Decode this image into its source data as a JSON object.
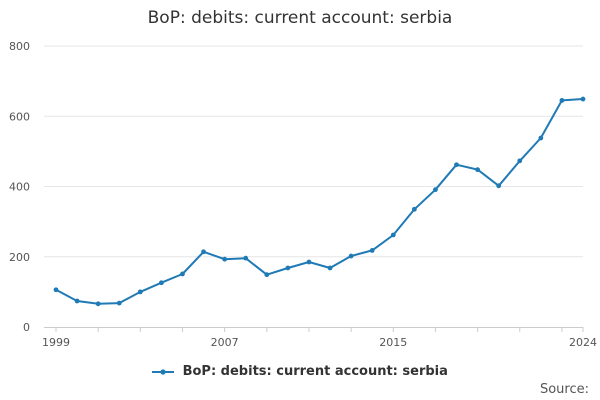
{
  "title": "BoP: debits: current account: serbia",
  "source_label": "Source:",
  "colors": {
    "series": "#1f7ab5",
    "grid": "#e6e6e6",
    "axis_text": "#555555",
    "axis_line": "#cccccc"
  },
  "chart_data": {
    "type": "line",
    "title": "BoP: debits: current account: serbia",
    "xlabel": "",
    "ylabel": "",
    "xlim": [
      1999,
      2024
    ],
    "ylim": [
      0,
      800
    ],
    "x_ticks": [
      1999,
      2007,
      2015,
      2024
    ],
    "y_ticks": [
      0,
      200,
      400,
      600,
      800
    ],
    "grid": true,
    "legend_position": "bottom",
    "series": [
      {
        "name": "BoP: debits: current account: serbia",
        "x": [
          1999,
          2000,
          2001,
          2002,
          2003,
          2004,
          2005,
          2006,
          2007,
          2008,
          2009,
          2010,
          2011,
          2012,
          2013,
          2014,
          2015,
          2016,
          2017,
          2018,
          2019,
          2020,
          2021,
          2022,
          2023,
          2024
        ],
        "y": [
          106,
          74,
          66,
          68,
          100,
          126,
          151,
          214,
          193,
          196,
          149,
          168,
          185,
          168,
          202,
          218,
          262,
          335,
          391,
          462,
          448,
          402,
          473,
          538,
          645,
          649
        ]
      }
    ]
  }
}
